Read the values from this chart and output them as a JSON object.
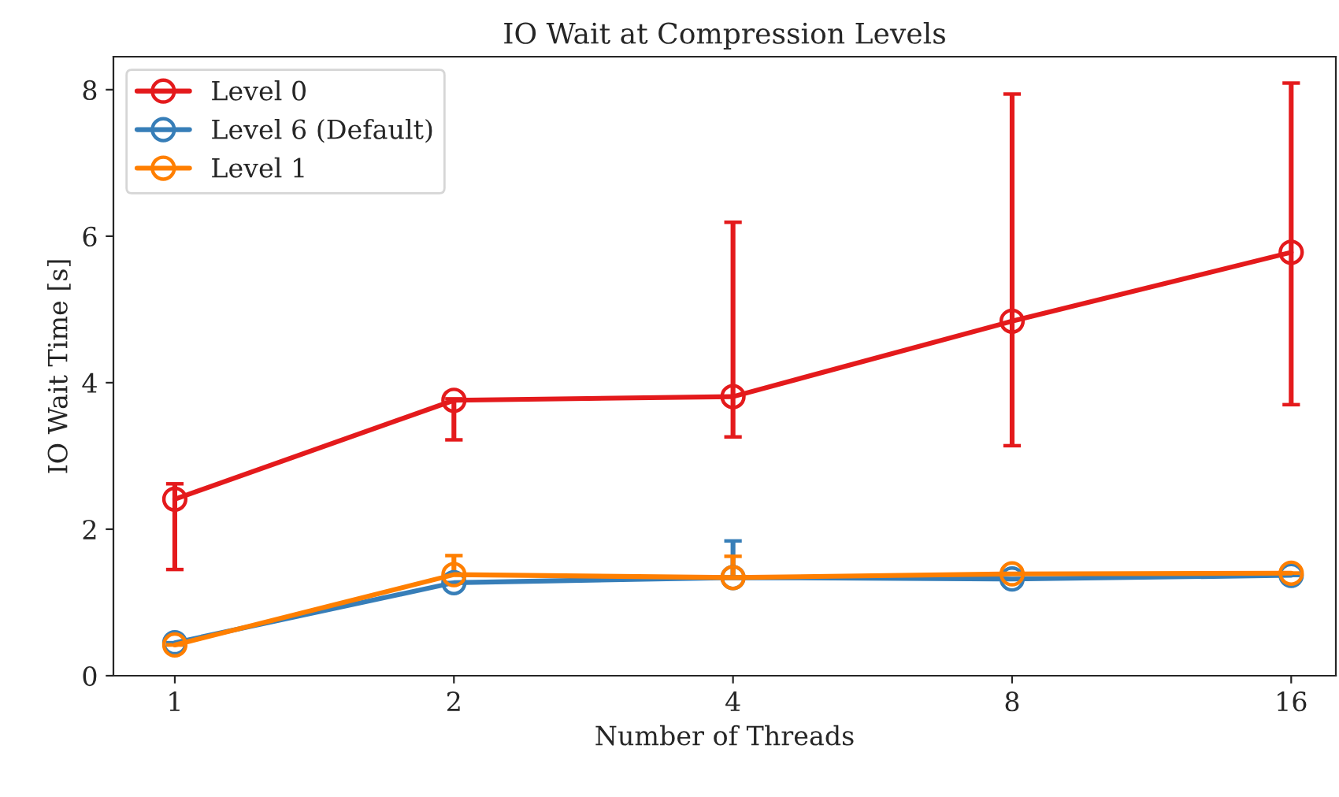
{
  "chart_data": {
    "type": "line",
    "title": "IO Wait at Compression Levels",
    "xlabel": "Number of Threads",
    "ylabel": "IO Wait Time [s]",
    "categories": [
      "1",
      "2",
      "4",
      "8",
      "16"
    ],
    "series": [
      {
        "name": "Level 0",
        "color": "#e41a1c",
        "values": [
          2.41,
          3.76,
          3.81,
          4.84,
          5.78
        ],
        "errors": [
          [
            1.45,
            2.62
          ],
          [
            3.22,
            3.78
          ],
          [
            3.26,
            6.19
          ],
          [
            3.14,
            7.94
          ],
          [
            3.7,
            8.09
          ]
        ]
      },
      {
        "name": "Level 6 (Default)",
        "color": "#377eb8",
        "values": [
          0.45,
          1.27,
          1.34,
          1.32,
          1.37
        ],
        "errors": [
          null,
          null,
          [
            1.34,
            1.84
          ],
          null,
          null
        ]
      },
      {
        "name": "Level 1",
        "color": "#ff7f00",
        "values": [
          0.42,
          1.38,
          1.34,
          1.39,
          1.4
        ],
        "errors": [
          null,
          [
            1.38,
            1.64
          ],
          [
            1.34,
            1.63
          ],
          null,
          null
        ]
      }
    ],
    "ylim": [
      0,
      8.45
    ],
    "yticks": [
      0,
      2,
      4,
      6,
      8
    ],
    "legend": "top left",
    "marker": "circle",
    "line_style": "solid"
  }
}
